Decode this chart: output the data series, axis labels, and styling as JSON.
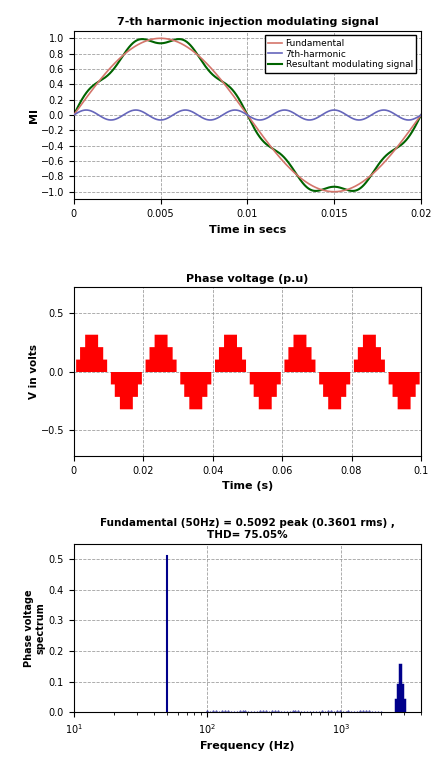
{
  "fig_width": 4.34,
  "fig_height": 7.66,
  "dpi": 100,
  "plot1": {
    "title": "7-th harmonic injection modulating signal",
    "xlabel": "Time in secs",
    "ylabel": "MI",
    "xlim": [
      0,
      0.02
    ],
    "ylim": [
      -1.1,
      1.1
    ],
    "yticks": [
      -1,
      -0.8,
      -0.6,
      -0.4,
      -0.2,
      0,
      0.2,
      0.4,
      0.6,
      0.8,
      1
    ],
    "xticks": [
      0,
      0.005,
      0.01,
      0.015,
      0.02
    ],
    "xticklabels": [
      "0",
      "0.005",
      "0.01",
      "0.015",
      "0.02"
    ],
    "fund_color": "#d4756b",
    "harm_color": "#6666bb",
    "result_color": "#006400",
    "fund_label": "Fundamental",
    "harm_label": "7th-harmonic",
    "result_label": "Resultant modulating signal",
    "fund_amplitude": 1.0,
    "fund_freq": 50,
    "harm_amplitude": 0.065,
    "harm_freq": 350,
    "linewidth": 1.2
  },
  "plot2": {
    "title": "Phase voltage (p.u)",
    "xlabel": "Time (s)",
    "ylabel": "V in volts",
    "xlim": [
      0,
      0.1
    ],
    "ylim": [
      -0.72,
      0.72
    ],
    "yticks": [
      -0.5,
      0,
      0.5
    ],
    "xticks": [
      0,
      0.02,
      0.04,
      0.06,
      0.08,
      0.1
    ],
    "xticklabels": [
      "0",
      "0.02",
      "0.04",
      "0.06",
      "0.08",
      "0.1"
    ],
    "fill_color": "#ff0000",
    "fund_freq": 50,
    "n_levels": 7,
    "vdc": 0.6366
  },
  "plot3": {
    "title": "Fundamental (50Hz) = 0.5092 peak (0.3601 rms) ,\nTHD= 75.05%",
    "xlabel": "Frequency (Hz)",
    "ylabel": "Phase voltage\nspectrum",
    "xlim": [
      10,
      4000
    ],
    "ylim": [
      0,
      0.55
    ],
    "yticks": [
      0,
      0.1,
      0.2,
      0.3,
      0.4,
      0.5
    ],
    "fund_freq": 50,
    "fund_amp": 0.5092,
    "high_freq": 2800,
    "high_amp": 0.155,
    "bar_color": "#00008b"
  },
  "bg_color": "#ffffff",
  "grid_color": "#888888",
  "grid_style": "--",
  "grid_alpha": 0.8
}
